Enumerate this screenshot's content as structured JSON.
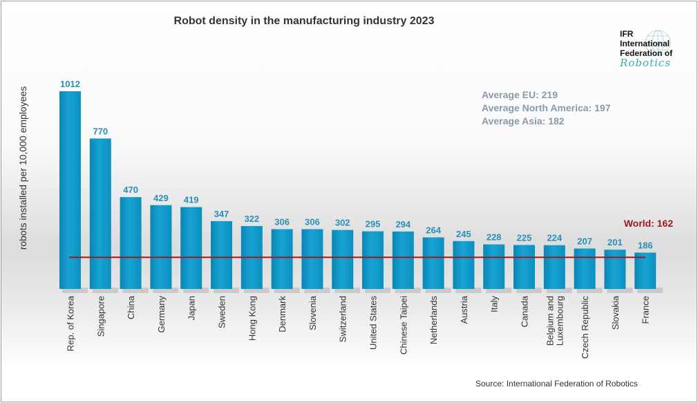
{
  "chart_data": {
    "type": "bar",
    "title": "Robot density in the manufacturing industry 2023",
    "ylabel": "robots installed per 10,000 employees",
    "xlabel": "",
    "categories": [
      "Rep. of Korea",
      "Singapore",
      "China",
      "Germany",
      "Japan",
      "Sweden",
      "Hong Kong",
      "Denmark",
      "Slovenia",
      "Switzerland",
      "United States",
      "Chinese Taipei",
      "Netherlands",
      "Austria",
      "Italy",
      "Canada",
      "Belgium and Luxembourg",
      "Czech Republic",
      "Slovakia",
      "France"
    ],
    "values": [
      1012,
      770,
      470,
      429,
      419,
      347,
      322,
      306,
      306,
      302,
      295,
      294,
      264,
      245,
      228,
      225,
      224,
      207,
      201,
      186
    ],
    "reference_line": {
      "label": "World: 162",
      "value": 162,
      "color": "#a01818"
    },
    "bar_color": "#0e9acb",
    "ylim": [
      0,
      1012
    ],
    "grid": false,
    "annotations": [
      "Average EU: 219",
      "Average North America: 197",
      "Average Asia: 182"
    ]
  },
  "logo": {
    "line1": "IFR",
    "line2": "International",
    "line3": "Federation of",
    "line4": "Robotics"
  },
  "source": "Source: International Federation of Robotics"
}
